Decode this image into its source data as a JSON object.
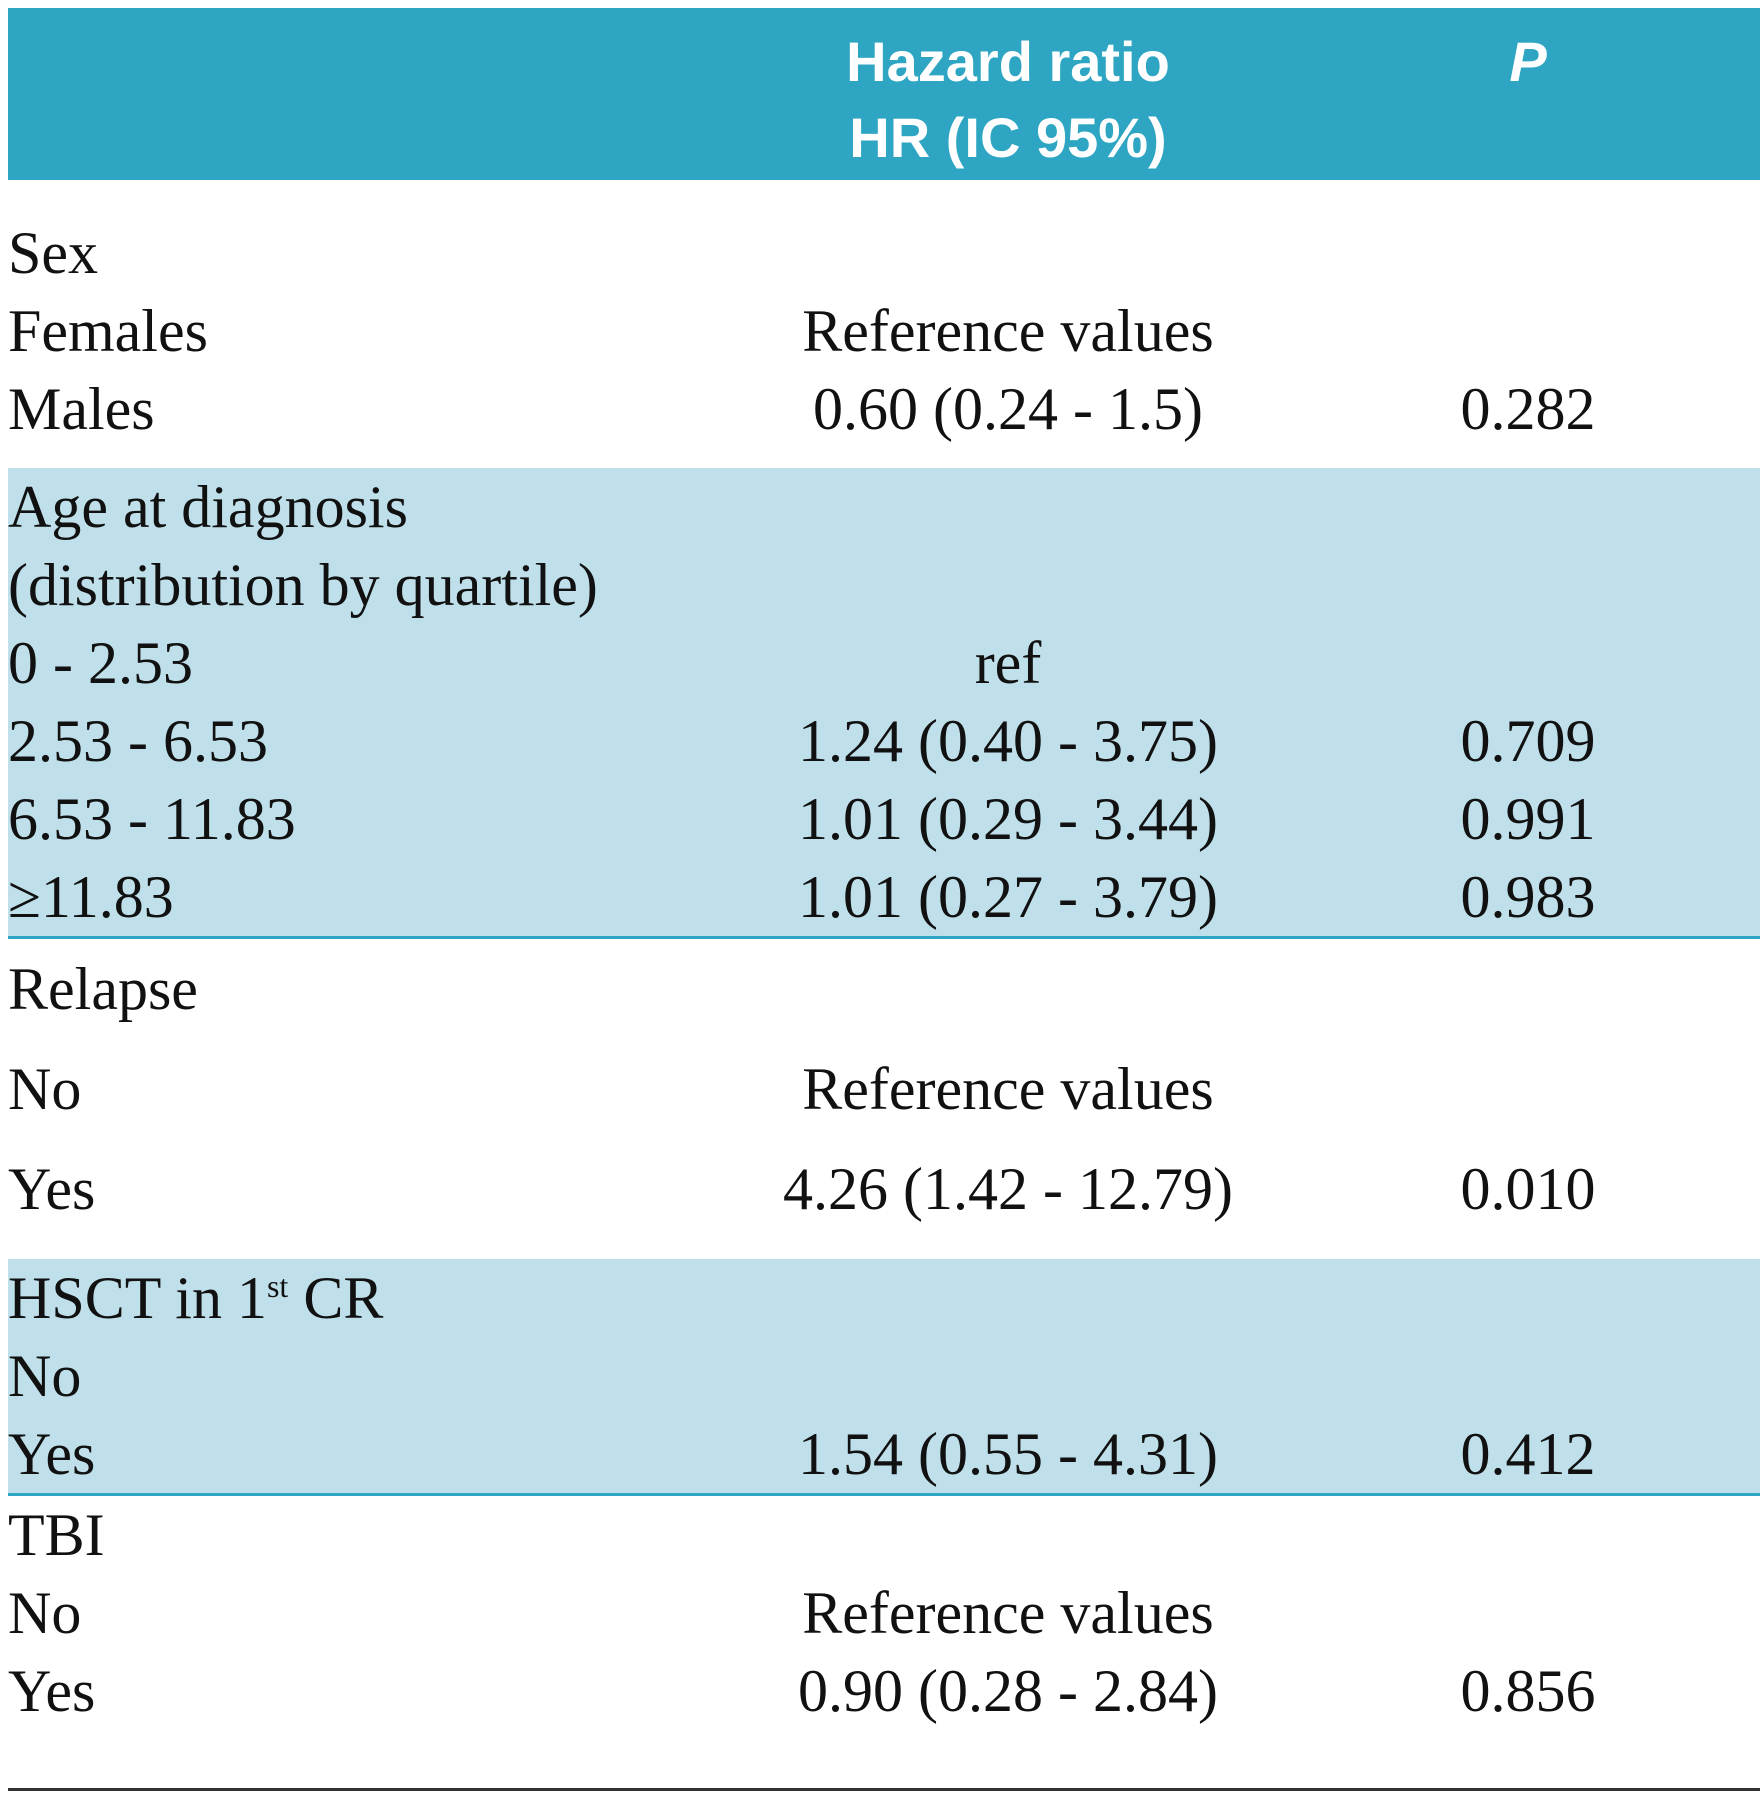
{
  "header": {
    "hr_line1": "Hazard ratio",
    "hr_line2": "HR (IC 95%)",
    "p": "P"
  },
  "sections": [
    {
      "title": "Sex",
      "rows": [
        {
          "label": "Females",
          "hr": "Reference values",
          "p": ""
        },
        {
          "label": "Males",
          "hr": "0.60  (0.24 - 1.5)",
          "p": "0.282"
        }
      ]
    },
    {
      "title": "Age at diagnosis",
      "subtitle": "(distribution by quartile)",
      "rows": [
        {
          "label": "0 - 2.53",
          "hr": "ref",
          "p": ""
        },
        {
          "label": "2.53 - 6.53",
          "hr": "1.24  (0.40 - 3.75)",
          "p": "0.709"
        },
        {
          "label": "6.53 - 11.83",
          "hr": "1.01  (0.29 - 3.44)",
          "p": "0.991"
        },
        {
          "label": "≥11.83",
          "hr": "1.01  (0.27 - 3.79)",
          "p": "0.983"
        }
      ]
    },
    {
      "title": "Relapse",
      "rows": [
        {
          "label": "No",
          "hr": "Reference values",
          "p": ""
        },
        {
          "label": "Yes",
          "hr": "4.26  (1.42 - 12.79)",
          "p": "0.010"
        }
      ]
    },
    {
      "title_main": "HSCT in 1",
      "title_sup": "st",
      "title_tail": " CR",
      "rows": [
        {
          "label": "No",
          "hr": "",
          "p": ""
        },
        {
          "label": "Yes",
          "hr": "1.54  (0.55 - 4.31)",
          "p": "0.412"
        }
      ]
    },
    {
      "title": "TBI",
      "rows": [
        {
          "label": "No",
          "hr": "Reference values",
          "p": ""
        },
        {
          "label": "Yes",
          "hr": "0.90  (0.28 - 2.84)",
          "p": "0.856"
        }
      ]
    }
  ]
}
